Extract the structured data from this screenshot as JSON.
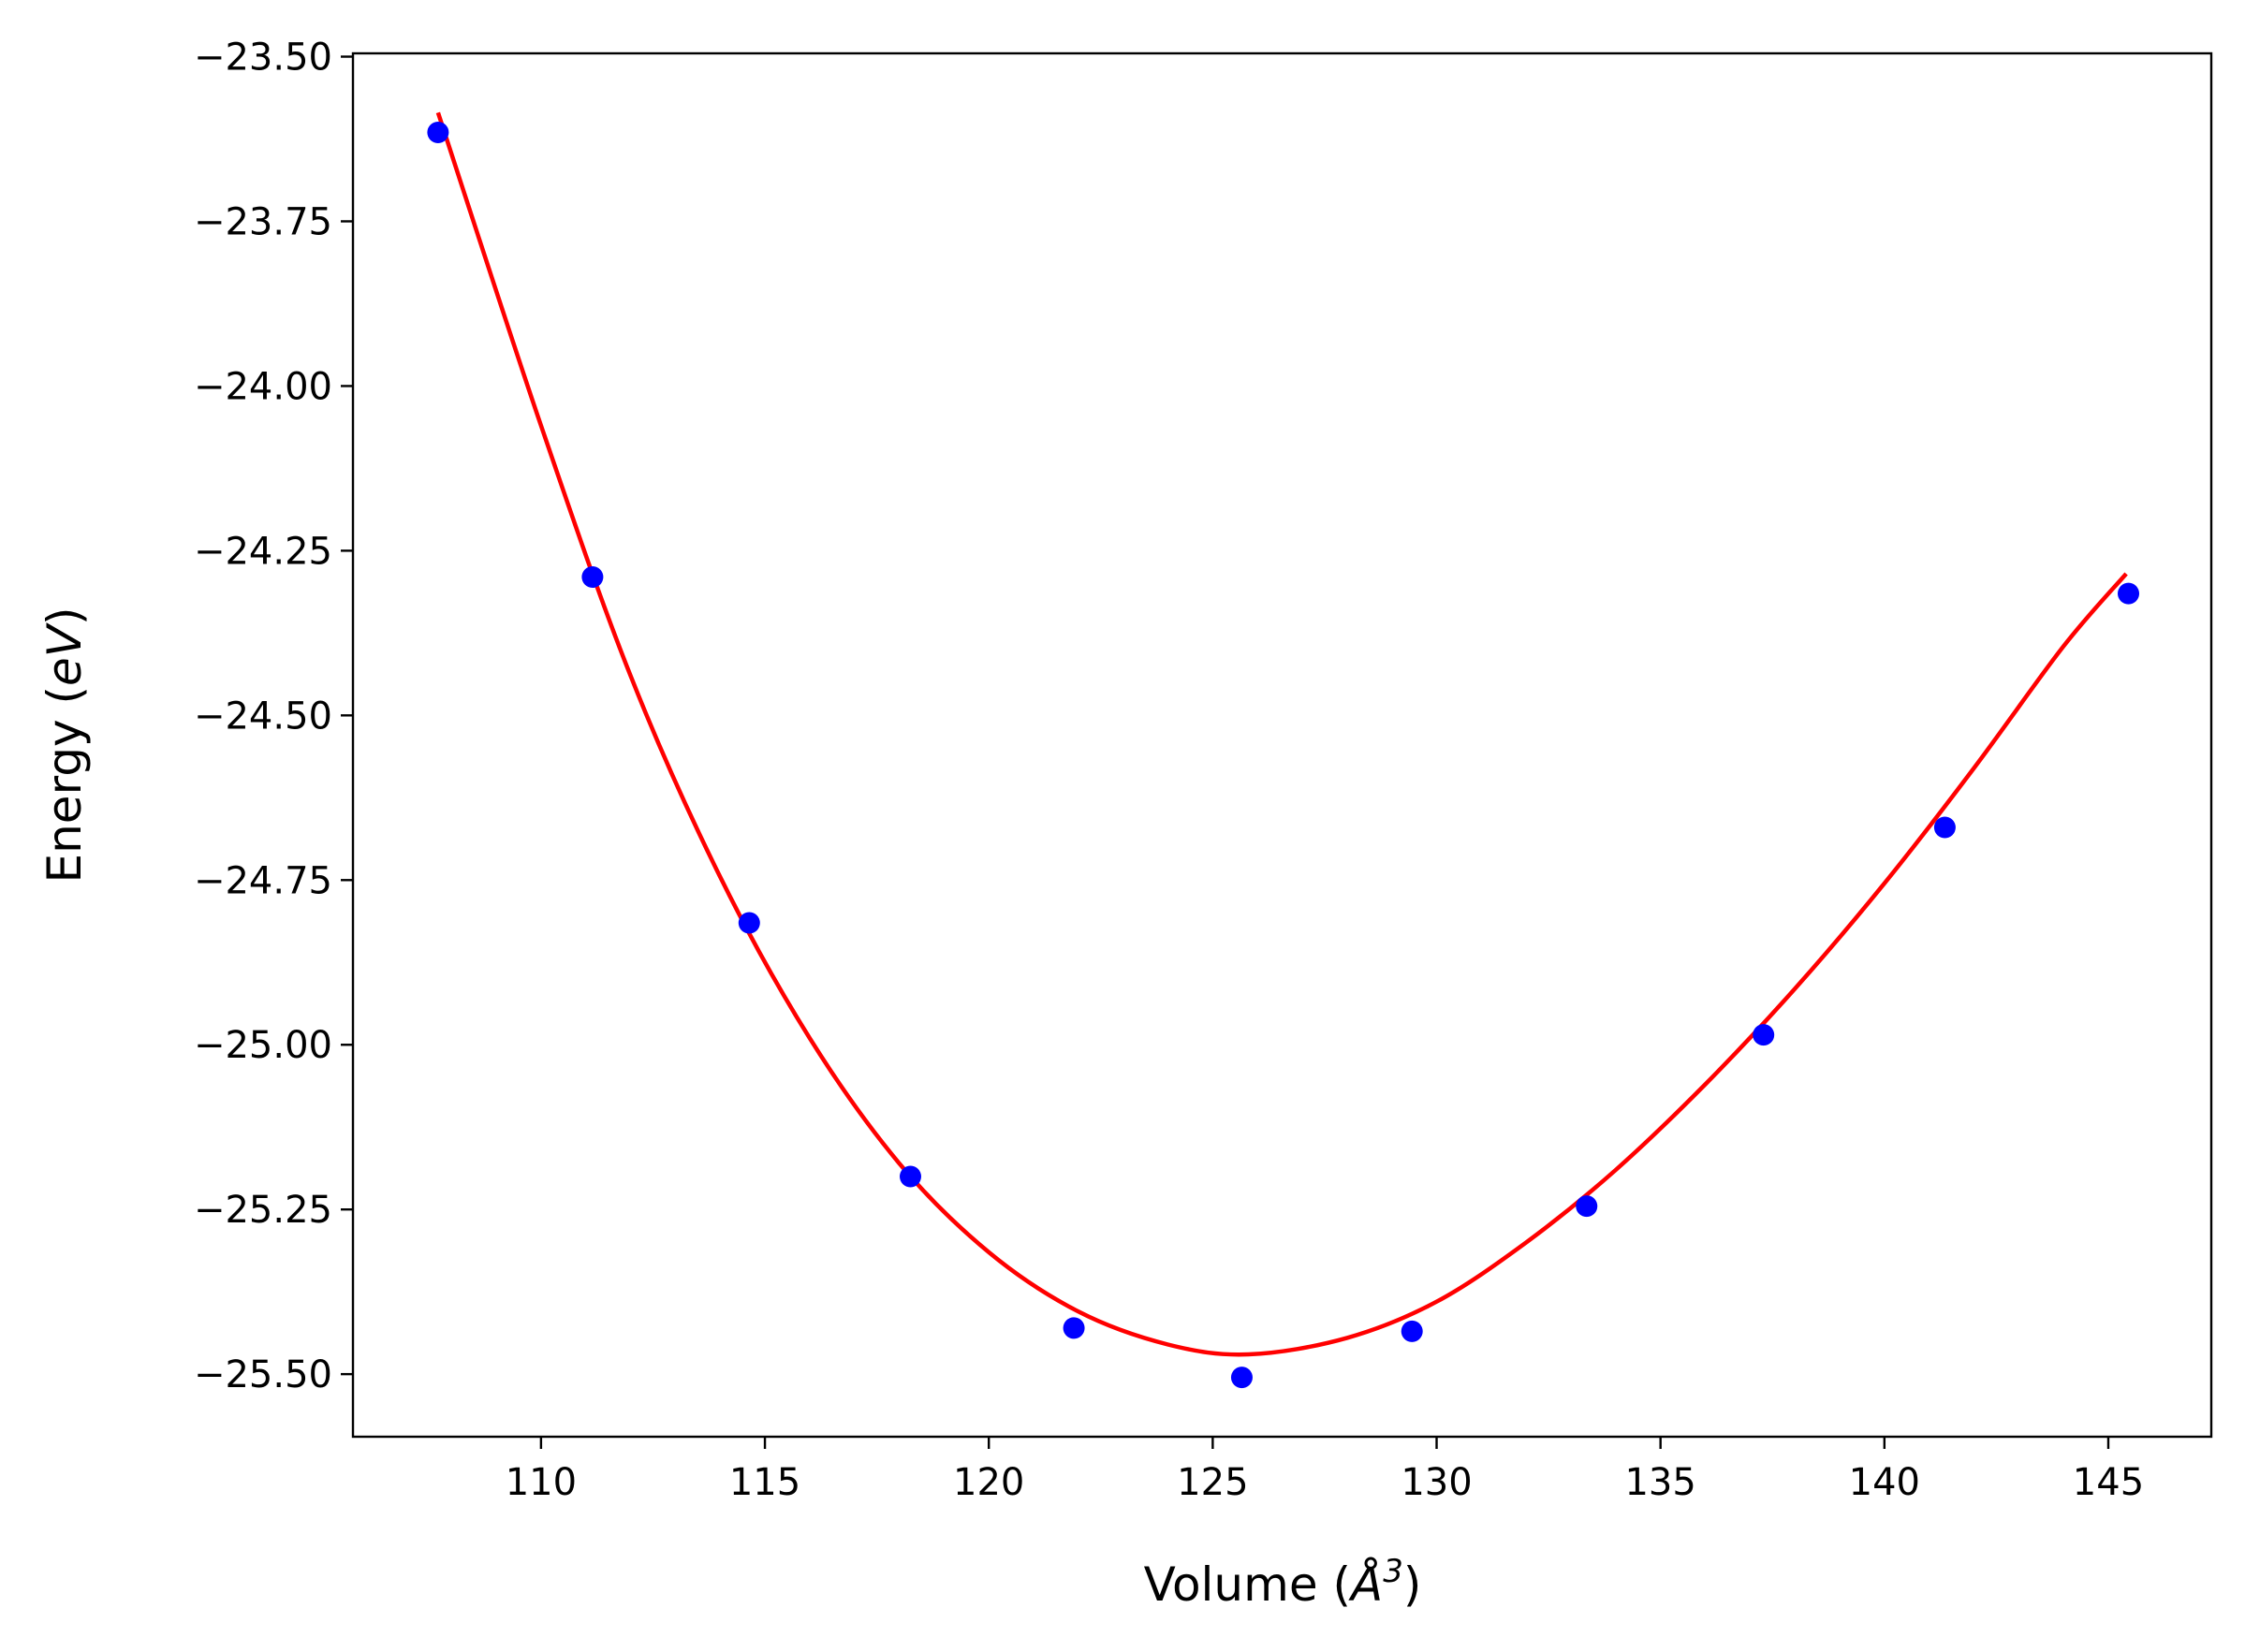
{
  "chart_data": {
    "type": "scatter",
    "title": "",
    "xlabel": "Volume ($\\AA^3$)",
    "xlabel_parts": {
      "prefix": "Volume (",
      "symbol": "Å",
      "exponent": "3",
      "suffix": ")"
    },
    "ylabel": "Energy ($eV$)",
    "ylabel_parts": {
      "prefix": "Energy (",
      "italic": "eV",
      "suffix": ")"
    },
    "xlim": [
      105.8,
      147.3
    ],
    "ylim": [
      -25.595,
      -23.495
    ],
    "xticks": [
      110,
      115,
      120,
      125,
      130,
      135,
      140,
      145
    ],
    "xtick_labels": [
      "110",
      "115",
      "120",
      "125",
      "130",
      "135",
      "140",
      "145"
    ],
    "yticks": [
      -23.5,
      -23.75,
      -24.0,
      -24.25,
      -24.5,
      -24.75,
      -25.0,
      -25.25,
      -25.5
    ],
    "ytick_labels": [
      "−23.50",
      "−23.75",
      "−24.00",
      "−24.25",
      "−24.50",
      "−24.75",
      "−25.00",
      "−25.25",
      "−25.50"
    ],
    "grid": false,
    "legend": "none",
    "series": [
      {
        "kind": "scatter",
        "color": "#0000ff",
        "x": [
          107.7,
          111.15,
          114.65,
          118.25,
          121.9,
          125.65,
          129.45,
          133.35,
          137.3,
          141.35,
          145.45
        ],
        "y": [
          -23.615,
          -24.29,
          -24.815,
          -25.2,
          -25.43,
          -25.505,
          -25.435,
          -25.245,
          -24.985,
          -24.67,
          -24.315
        ]
      },
      {
        "kind": "fit",
        "color": "#ff0000",
        "x": [
          107.7,
          110,
          112,
          114,
          116,
          118,
          120,
          122,
          124,
          125.8,
          128,
          130,
          132,
          134,
          136,
          138,
          140,
          142,
          144,
          145.4
        ],
        "y": [
          -23.585,
          -24.06,
          -24.44,
          -24.745,
          -24.99,
          -25.18,
          -25.315,
          -25.405,
          -25.455,
          -25.47,
          -25.445,
          -25.39,
          -25.3,
          -25.19,
          -25.06,
          -24.915,
          -24.755,
          -24.58,
          -24.395,
          -24.285
        ]
      }
    ]
  }
}
